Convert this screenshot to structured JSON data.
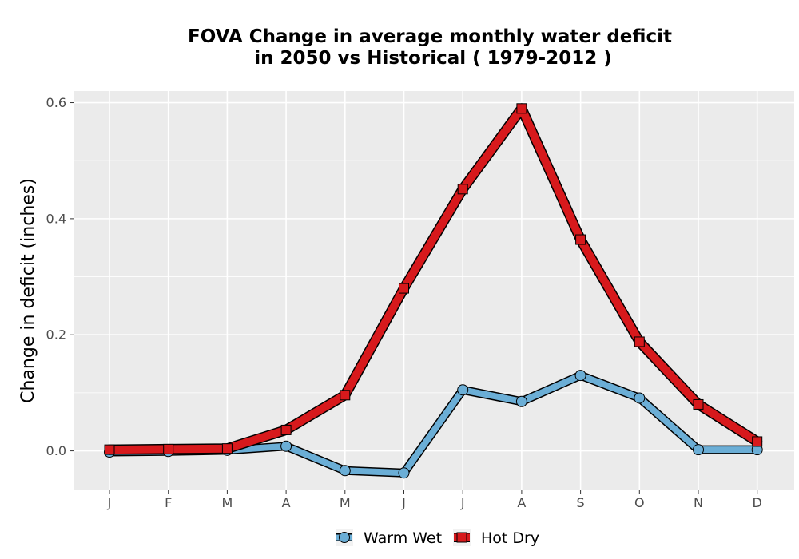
{
  "chart_data": {
    "type": "line",
    "title_line1": "FOVA  Change in average monthly water deficit",
    "title_line2": "in 2050 vs Historical ( 1979-2012 )",
    "ylabel": "Change in deficit (inches)",
    "xlabel": "",
    "categories": [
      "J",
      "F",
      "M",
      "A",
      "M",
      "J",
      "J",
      "A",
      "S",
      "O",
      "N",
      "D"
    ],
    "ylim": [
      -0.068,
      0.62
    ],
    "yticks": [
      0.0,
      0.2,
      0.4,
      0.6
    ],
    "ytick_labels": [
      "0.0",
      "0.2",
      "0.4",
      "0.6"
    ],
    "grid": true,
    "legend_position": "bottom",
    "series": [
      {
        "name": "Warm Wet",
        "values": [
          -0.002,
          -0.001,
          0.001,
          0.008,
          -0.034,
          -0.038,
          0.105,
          0.085,
          0.13,
          0.091,
          0.002,
          0.002
        ],
        "color": "#6baed6",
        "marker": "circle"
      },
      {
        "name": "Hot Dry",
        "values": [
          0.002,
          0.003,
          0.004,
          0.036,
          0.096,
          0.28,
          0.451,
          0.59,
          0.364,
          0.188,
          0.08,
          0.016
        ],
        "color": "#d7191c",
        "marker": "square"
      }
    ]
  }
}
